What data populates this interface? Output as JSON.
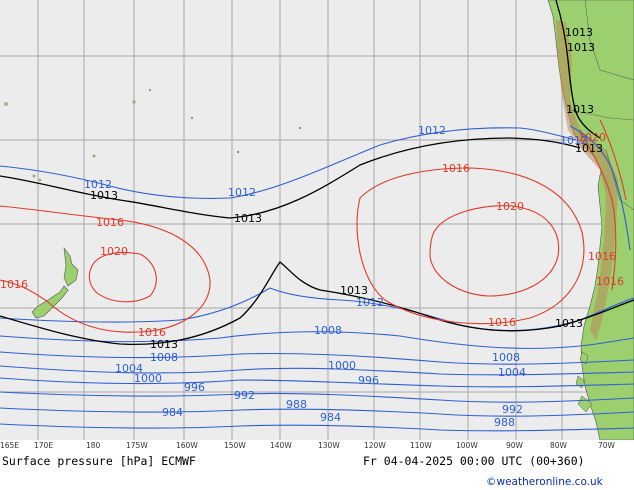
{
  "map": {
    "title": "Surface pressure [hPa] ECMWF",
    "valid_time": "Fr 04-04-2025 00:00 UTC (00+360)",
    "credit": "©weatheronline.co.uk",
    "colors": {
      "ocean": "#ececec",
      "land": "#9ccf6e",
      "grid": "#a8a8a8",
      "isobar_low": "#2f5fd6",
      "isobar_high": "#e03a2a",
      "isobar_ref": "#000000",
      "credit": "#0a2fa8"
    },
    "longitude_ticks": [
      "165E",
      "170E",
      "180",
      "175W",
      "160W",
      "150W",
      "140W",
      "130W",
      "120W",
      "110W",
      "100W",
      "90W",
      "80W",
      "70W"
    ],
    "isobar_labels": {
      "l1013a": "1013",
      "l1013b": "1013",
      "l1013c": "1013",
      "l1013d": "1013",
      "l1013e": "1013",
      "l1013f": "1013",
      "l1013g": "1013",
      "l1013h": "1013",
      "l1012a": "1012",
      "l1012b": "1012",
      "l1012c": "1012",
      "l1012d": "1012",
      "l1016a": "1016",
      "l1016b": "1016",
      "l1016c": "1016",
      "l1016d": "1016",
      "l1016e": "1016",
      "l1016f": "1016",
      "l1020a": "1020",
      "l1020b": "1020",
      "l1020c": "1020",
      "l1016g": "1016",
      "l1008a": "1008",
      "l1008b": "1008",
      "l1008c": "1008",
      "l1004a": "1004",
      "l1004b": "1004",
      "l1000a": "1000",
      "l1000b": "1000",
      "l996a": "996",
      "l996b": "996",
      "l992a": "992",
      "l992b": "992",
      "l988a": "988",
      "l988b": "988",
      "l984a": "984",
      "l984b": "984",
      "l1012e": "1012"
    }
  }
}
